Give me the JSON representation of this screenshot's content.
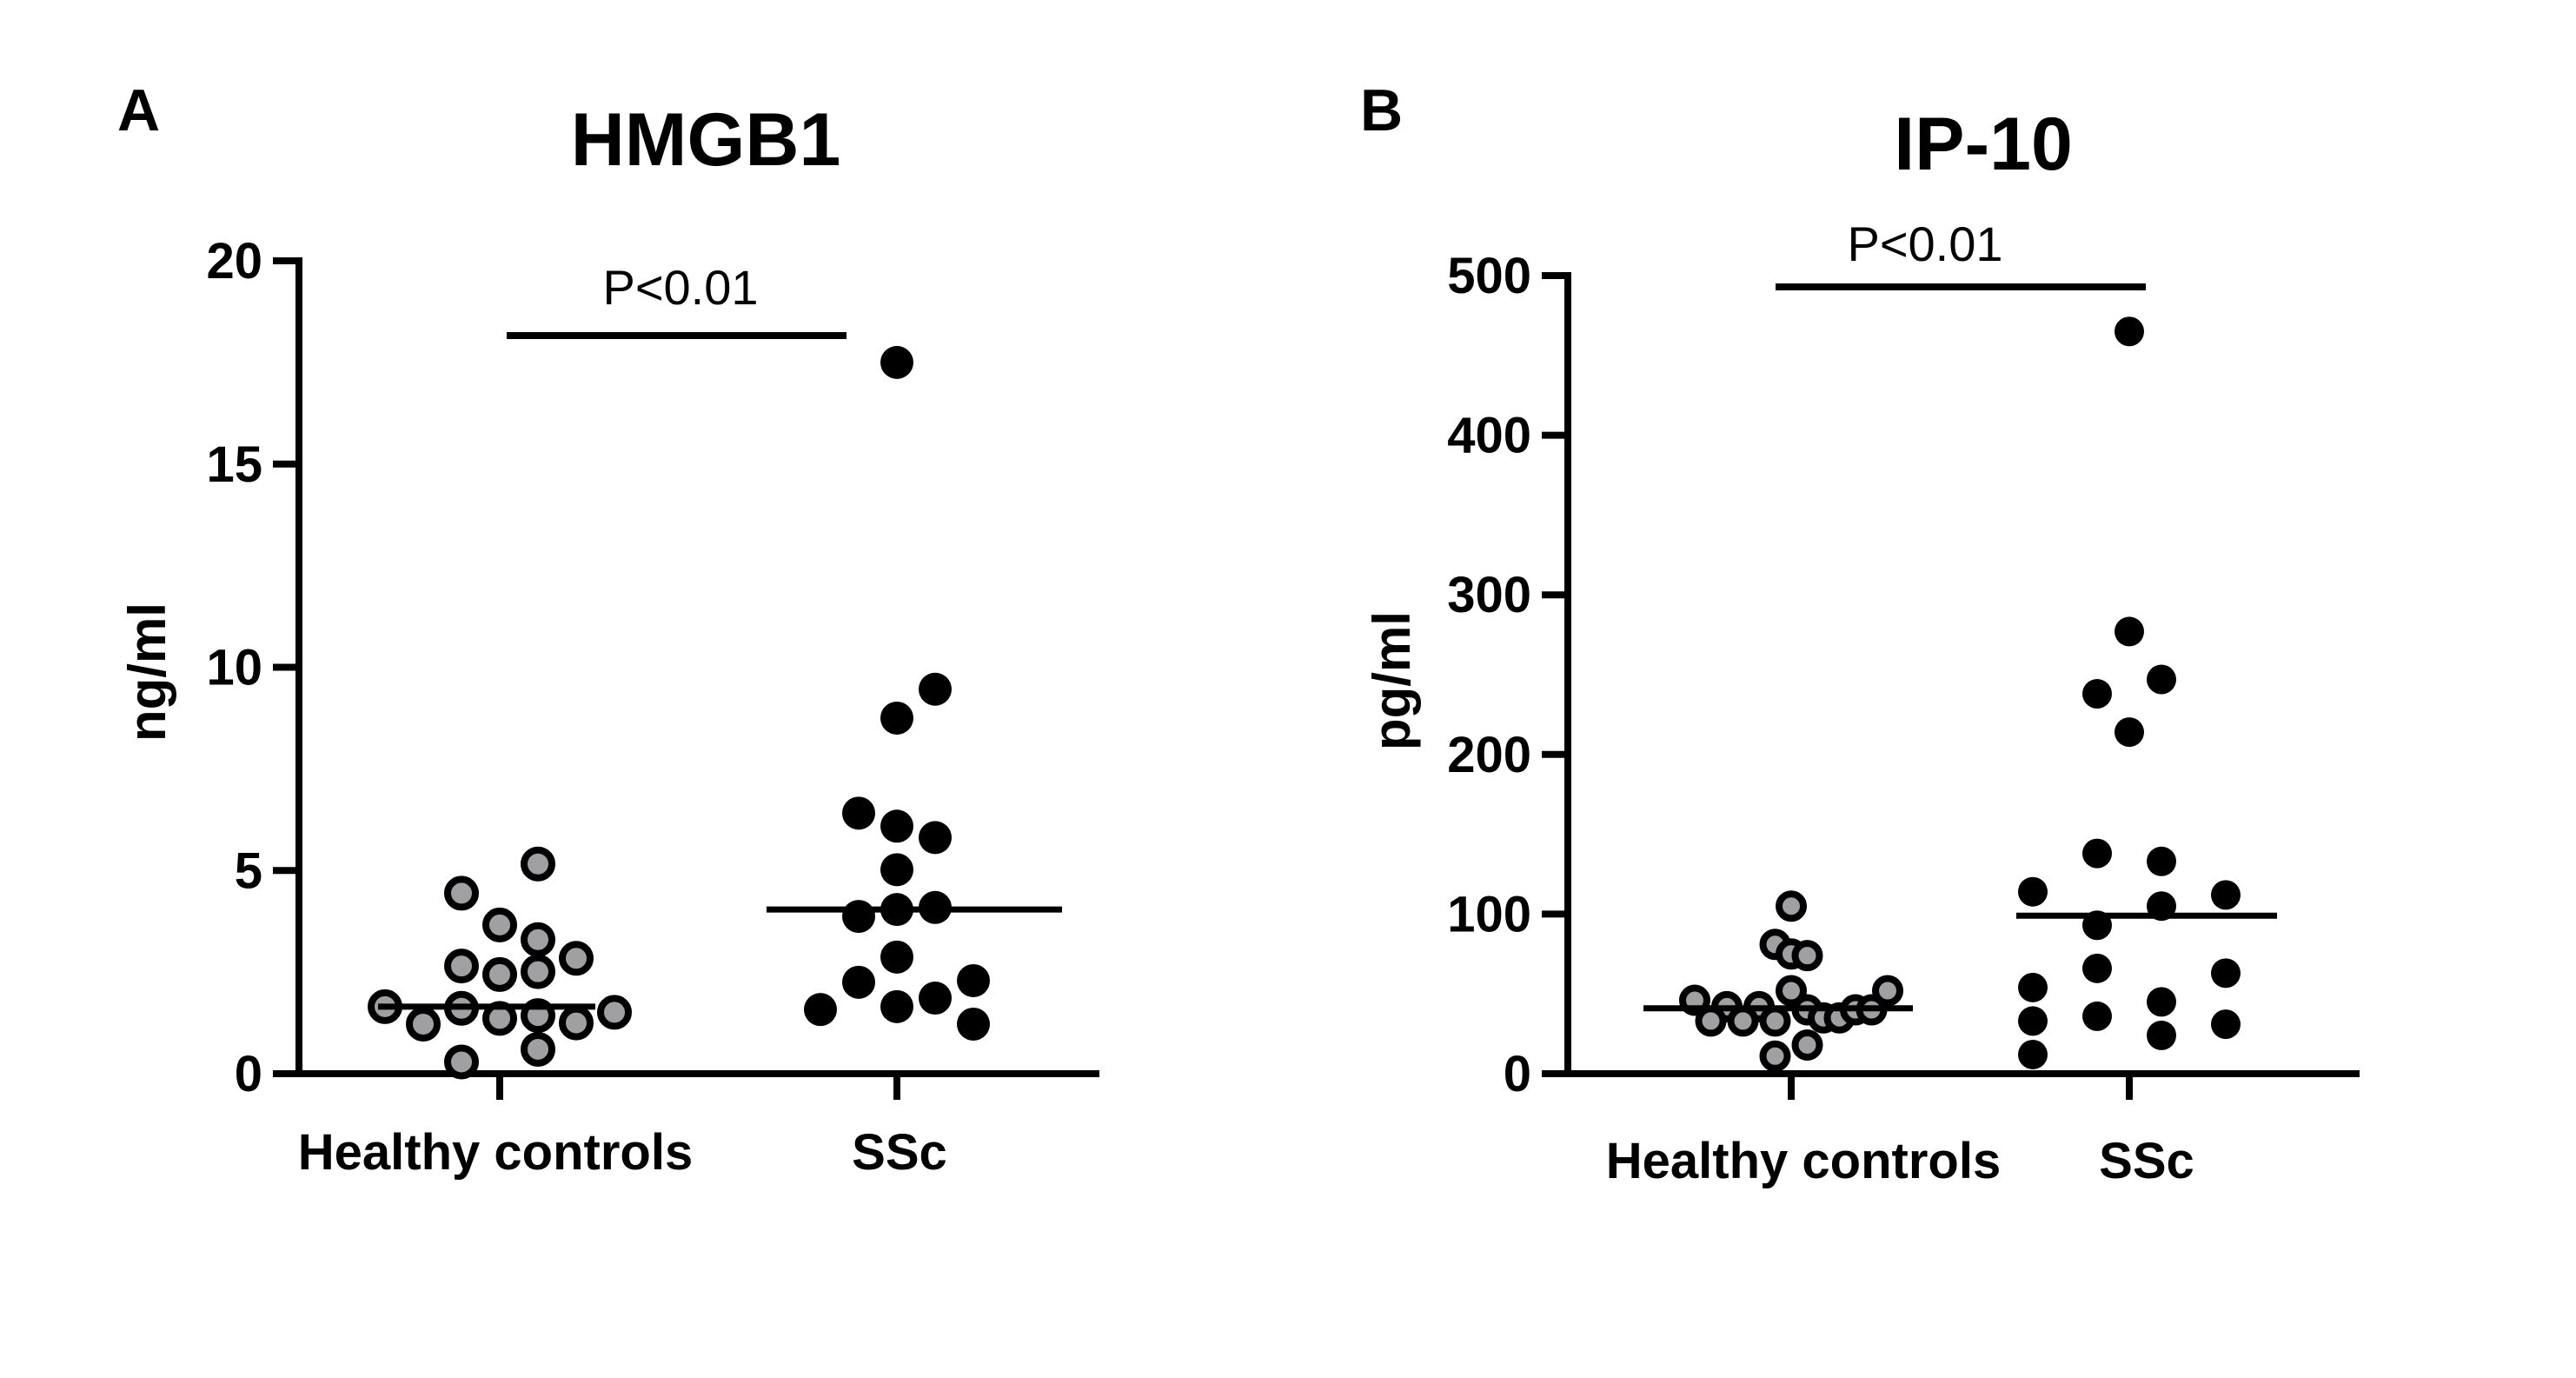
{
  "chart_data": [
    {
      "type": "scatter",
      "panel_label": "A",
      "title": "HMGB1",
      "ylabel": "ng/ml",
      "xlabel": "",
      "ylim": [
        0,
        20
      ],
      "yticks": [
        "0",
        "5",
        "10",
        "15",
        "20"
      ],
      "ytick_values": [
        0,
        5,
        10,
        15,
        20
      ],
      "categories": [
        "Healthy controls",
        "SSc"
      ],
      "annotation": "P<0.01",
      "series": [
        {
          "name": "Healthy controls",
          "color": "#a0a0a2",
          "median": 1.65,
          "values": [
            5.16,
            4.44,
            3.66,
            3.3,
            2.84,
            2.65,
            2.44,
            2.51,
            1.65,
            1.61,
            1.22,
            1.36,
            1.43,
            1.25,
            1.51,
            0.6,
            0.29
          ],
          "jitter": [
            1,
            -1,
            0,
            1,
            2,
            -1,
            0,
            1,
            -3,
            -1,
            -2,
            0,
            1,
            2,
            3,
            1,
            -1
          ]
        },
        {
          "name": "SSc",
          "color": "#000000",
          "median": 4.04,
          "values": [
            17.5,
            9.46,
            8.75,
            6.41,
            6.09,
            5.81,
            5.02,
            3.87,
            4.04,
            4.09,
            2.87,
            2.25,
            1.58,
            1.65,
            1.86,
            2.29,
            1.22
          ],
          "jitter": [
            0,
            1,
            0,
            -1,
            0,
            1,
            0,
            -1,
            0,
            1,
            0,
            -1,
            -2,
            0,
            1,
            2,
            2
          ]
        }
      ]
    },
    {
      "type": "scatter",
      "panel_label": "B",
      "title": "IP-10",
      "ylabel": "pg/ml",
      "xlabel": "",
      "ylim": [
        0,
        500
      ],
      "yticks": [
        "0",
        "100",
        "200",
        "300",
        "400",
        "500"
      ],
      "ytick_values": [
        0,
        100,
        200,
        300,
        400,
        500
      ],
      "categories": [
        "Healthy controls",
        "SSc"
      ],
      "annotation": "P<0.01",
      "series": [
        {
          "name": "Healthy controls",
          "color": "#a0a0a2",
          "median": 41,
          "values": [
            105,
            81,
            75,
            74,
            52,
            46,
            52,
            42,
            42,
            33,
            33,
            33,
            40,
            35,
            35,
            40,
            40,
            18,
            11
          ],
          "jitter": [
            0,
            -0.5,
            0,
            0.5,
            0,
            -3,
            3,
            -2,
            -1,
            -2.5,
            -1.5,
            -0.5,
            0.5,
            1,
            1.5,
            2,
            2.5,
            0.5,
            -0.5
          ]
        },
        {
          "name": "SSc",
          "color": "#000000",
          "median": 99,
          "values": [
            465,
            277,
            247,
            238,
            214,
            138,
            133,
            114,
            112,
            105,
            93,
            66,
            63,
            54,
            33,
            36,
            45,
            31,
            24,
            12
          ],
          "jitter": [
            0,
            0,
            1,
            -1,
            0,
            -1,
            1,
            -3,
            3,
            1,
            -1,
            -1,
            3,
            -3,
            -3,
            -1,
            1,
            3,
            1,
            -3
          ]
        }
      ]
    }
  ]
}
